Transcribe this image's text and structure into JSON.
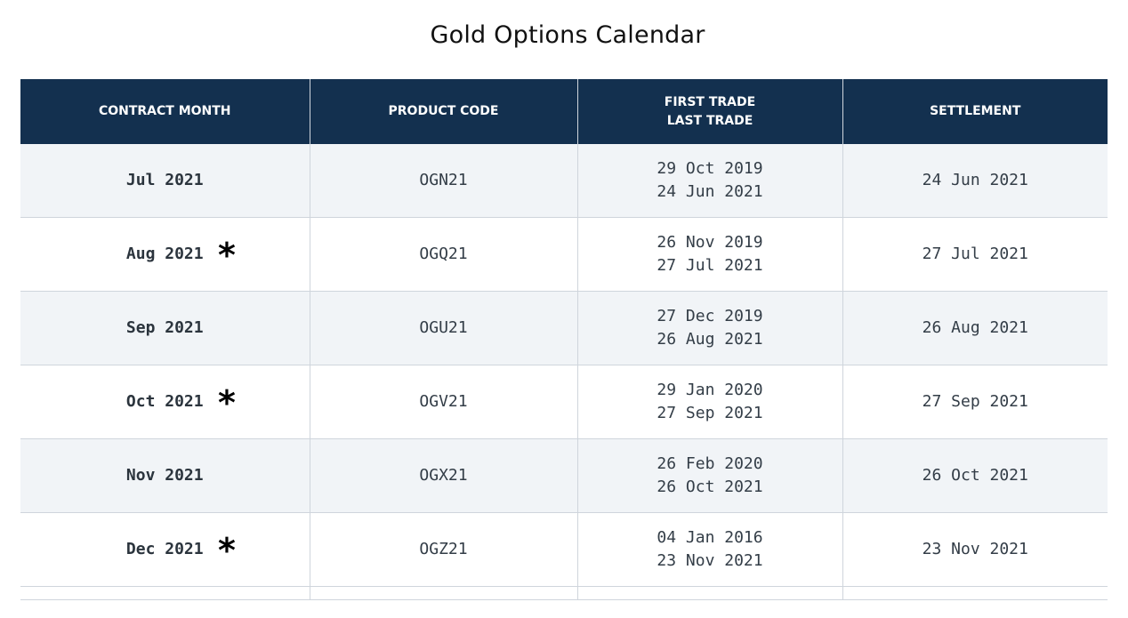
{
  "page": {
    "title": "Gold Options Calendar"
  },
  "table": {
    "headers": {
      "contract_month": "CONTRACT MONTH",
      "product_code": "PRODUCT CODE",
      "first_trade": "FIRST TRADE",
      "last_trade": "LAST TRADE",
      "settlement": "SETTLEMENT"
    },
    "rows": [
      {
        "month": "Jul 2021",
        "marker": "",
        "code": "OGN21",
        "first_trade": "29 Oct 2019",
        "last_trade": "24 Jun 2021",
        "settlement": "24 Jun 2021"
      },
      {
        "month": "Aug 2021",
        "marker": "*",
        "code": "OGQ21",
        "first_trade": "26 Nov 2019",
        "last_trade": "27 Jul 2021",
        "settlement": "27 Jul 2021"
      },
      {
        "month": "Sep 2021",
        "marker": "",
        "code": "OGU21",
        "first_trade": "27 Dec 2019",
        "last_trade": "26 Aug 2021",
        "settlement": "26 Aug 2021"
      },
      {
        "month": "Oct 2021",
        "marker": "*",
        "code": "OGV21",
        "first_trade": "29 Jan 2020",
        "last_trade": "27 Sep 2021",
        "settlement": "27 Sep 2021"
      },
      {
        "month": "Nov 2021",
        "marker": "",
        "code": "OGX21",
        "first_trade": "26 Feb 2020",
        "last_trade": "26 Oct 2021",
        "settlement": "26 Oct 2021"
      },
      {
        "month": "Dec 2021",
        "marker": "*",
        "code": "OGZ21",
        "first_trade": "04 Jan 2016",
        "last_trade": "23 Nov 2021",
        "settlement": "23 Nov 2021"
      }
    ]
  },
  "colors": {
    "header_bg": "#13304f",
    "header_text": "#ffffff",
    "shaded_row": "#f1f4f7",
    "border": "#cfd5dc"
  }
}
